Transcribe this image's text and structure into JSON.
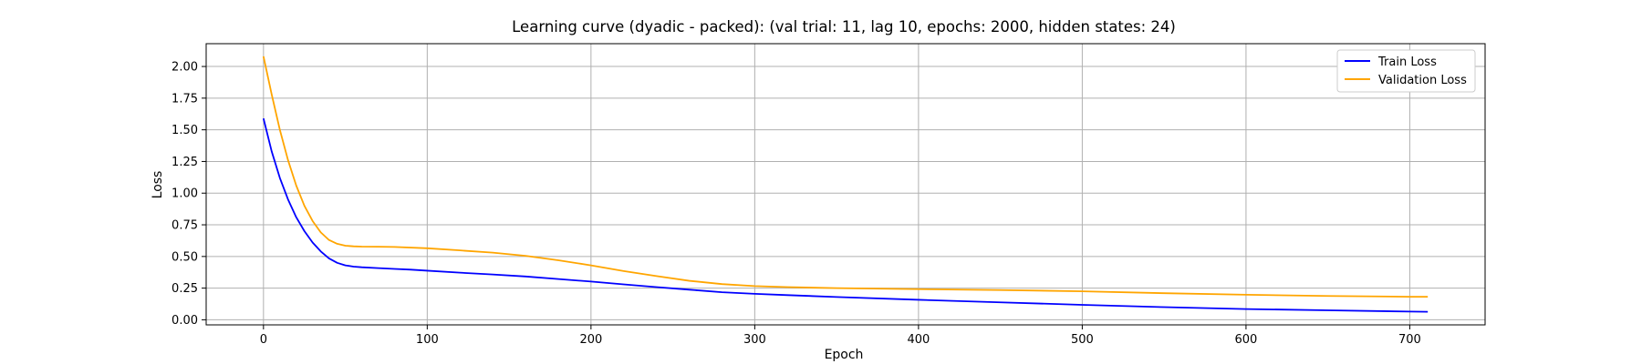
{
  "chart_data": {
    "type": "line",
    "title": "Learning curve (dyadic - packed): (val trial: 11, lag 10, epochs: 2000, hidden states: 24)",
    "xlabel": "Epoch",
    "ylabel": "Loss",
    "xlim": [
      -35,
      746
    ],
    "ylim": [
      -0.04,
      2.18
    ],
    "xticks": [
      0,
      100,
      200,
      300,
      400,
      500,
      600,
      700
    ],
    "yticks": [
      0.0,
      0.25,
      0.5,
      0.75,
      1.0,
      1.25,
      1.5,
      1.75,
      2.0
    ],
    "xtick_labels": [
      "0",
      "100",
      "200",
      "300",
      "400",
      "500",
      "600",
      "700"
    ],
    "ytick_labels": [
      "0.00",
      "0.25",
      "0.50",
      "0.75",
      "1.00",
      "1.25",
      "1.50",
      "1.75",
      "2.00"
    ],
    "grid": true,
    "legend_position": "top-right",
    "series": [
      {
        "name": "Train Loss",
        "color": "#0000ff",
        "points": [
          [
            0,
            1.59
          ],
          [
            5,
            1.33
          ],
          [
            10,
            1.12
          ],
          [
            15,
            0.95
          ],
          [
            20,
            0.81
          ],
          [
            25,
            0.7
          ],
          [
            30,
            0.61
          ],
          [
            35,
            0.54
          ],
          [
            40,
            0.485
          ],
          [
            45,
            0.45
          ],
          [
            50,
            0.43
          ],
          [
            55,
            0.42
          ],
          [
            60,
            0.415
          ],
          [
            70,
            0.408
          ],
          [
            80,
            0.402
          ],
          [
            90,
            0.396
          ],
          [
            100,
            0.388
          ],
          [
            120,
            0.372
          ],
          [
            140,
            0.358
          ],
          [
            160,
            0.342
          ],
          [
            180,
            0.322
          ],
          [
            200,
            0.302
          ],
          [
            220,
            0.28
          ],
          [
            240,
            0.258
          ],
          [
            260,
            0.238
          ],
          [
            280,
            0.218
          ],
          [
            300,
            0.205
          ],
          [
            320,
            0.195
          ],
          [
            350,
            0.18
          ],
          [
            400,
            0.158
          ],
          [
            450,
            0.138
          ],
          [
            500,
            0.118
          ],
          [
            550,
            0.1
          ],
          [
            600,
            0.085
          ],
          [
            650,
            0.075
          ],
          [
            700,
            0.065
          ],
          [
            711,
            0.063
          ]
        ]
      },
      {
        "name": "Validation Loss",
        "color": "#ffa500",
        "points": [
          [
            0,
            2.08
          ],
          [
            5,
            1.78
          ],
          [
            10,
            1.5
          ],
          [
            15,
            1.26
          ],
          [
            20,
            1.06
          ],
          [
            25,
            0.9
          ],
          [
            30,
            0.78
          ],
          [
            35,
            0.69
          ],
          [
            40,
            0.63
          ],
          [
            45,
            0.6
          ],
          [
            50,
            0.585
          ],
          [
            55,
            0.58
          ],
          [
            60,
            0.578
          ],
          [
            70,
            0.577
          ],
          [
            80,
            0.575
          ],
          [
            100,
            0.565
          ],
          [
            120,
            0.548
          ],
          [
            140,
            0.53
          ],
          [
            160,
            0.505
          ],
          [
            180,
            0.47
          ],
          [
            200,
            0.43
          ],
          [
            220,
            0.385
          ],
          [
            240,
            0.345
          ],
          [
            260,
            0.308
          ],
          [
            280,
            0.282
          ],
          [
            300,
            0.266
          ],
          [
            320,
            0.258
          ],
          [
            350,
            0.25
          ],
          [
            400,
            0.242
          ],
          [
            450,
            0.235
          ],
          [
            500,
            0.225
          ],
          [
            550,
            0.21
          ],
          [
            600,
            0.198
          ],
          [
            650,
            0.188
          ],
          [
            700,
            0.182
          ],
          [
            711,
            0.182
          ]
        ]
      }
    ]
  }
}
